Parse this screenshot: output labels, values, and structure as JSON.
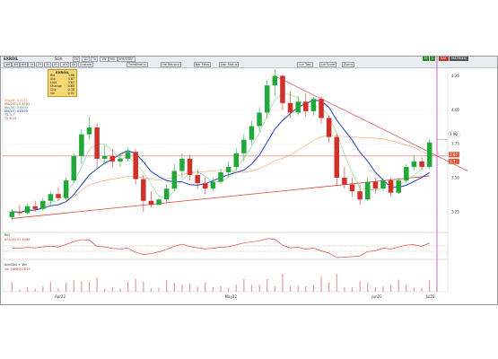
{
  "window": {
    "symbol": "EXROIL",
    "source_label": "SGX",
    "menu_items": [
      "Fe",
      "1D",
      "Tk",
      "1W",
      "M/L",
      "IFR/OTRF"
    ],
    "period_buttons": [
      "1M",
      "3M",
      "6M",
      "1Y",
      "2Y",
      "3Y",
      "5Y",
      "10Y",
      "All",
      "Custom"
    ],
    "toolbar_buttons": [
      "Trendline(s)",
      "Fib Retrace",
      "Bar Mkrs",
      "Dsp Status"
    ],
    "draw_buttons": [
      "Cur Tool",
      "Lin Scale",
      "Zoom"
    ],
    "badges": [
      {
        "text": "H",
        "color": "#2f8a2f"
      },
      {
        "text": "L",
        "color": "#2f8a2f"
      },
      {
        "text": "SAT",
        "color": "#c0392b"
      },
      {
        "text": "MATRIXIS",
        "color": "#555555"
      }
    ]
  },
  "quote": {
    "title": "EXROIL",
    "rows": [
      {
        "label": "Bid",
        "value": "3.66"
      },
      {
        "label": "Ask",
        "value": "3.67"
      },
      {
        "label": "Last",
        "value": "3.67"
      },
      {
        "label": "Change",
        "value": "0.65"
      },
      {
        "label": "Chg",
        "value": "0.38"
      },
      {
        "label": "Vol",
        "value": "0.01"
      }
    ]
  },
  "indicators": {
    "main": [
      {
        "text": "MA(20)",
        "value": "0.3111",
        "color": "#e07b2a"
      },
      {
        "text": "MA(200)",
        "value": "0.3181",
        "color": "#c0392b"
      },
      {
        "text": "MA(50)",
        "value": "0.6333",
        "color": "#2e8b57"
      },
      {
        "text": "MA(10)",
        "value": "0.6590",
        "color": "#1f3fbf"
      }
    ],
    "main_extra": [
      "T1.3.7",
      "T2.8.15"
    ],
    "rsi_label": "RSI",
    "rsi_value": "RSI(14)   57.6496",
    "vol_label": "Acc/Dist + Vol",
    "vol_value": "Vol   1668007819"
  },
  "price_tags": [
    {
      "text": "3.90",
      "color": "#ffffff",
      "text_color": "#333333"
    },
    {
      "text": "3.67",
      "color": "#e05a40",
      "text_color": "#ffffff"
    },
    {
      "text": "3.7",
      "color": "#e05a40",
      "text_color": "#ffffff"
    }
  ],
  "chart_data": {
    "type": "candlestick",
    "x_tick_labels": [
      "Apr22",
      "May22",
      "Jun22",
      "Jul22"
    ],
    "y_ticks": [
      3.25,
      3.5,
      3.75,
      4,
      4.25
    ],
    "ylim": [
      3.15,
      4.3
    ],
    "candles": [
      {
        "o": 3.21,
        "h": 3.27,
        "l": 3.19,
        "c": 3.25
      },
      {
        "o": 3.25,
        "h": 3.3,
        "l": 3.22,
        "c": 3.24
      },
      {
        "o": 3.24,
        "h": 3.31,
        "l": 3.23,
        "c": 3.29
      },
      {
        "o": 3.29,
        "h": 3.33,
        "l": 3.25,
        "c": 3.27
      },
      {
        "o": 3.27,
        "h": 3.35,
        "l": 3.26,
        "c": 3.33
      },
      {
        "o": 3.33,
        "h": 3.4,
        "l": 3.3,
        "c": 3.38
      },
      {
        "o": 3.38,
        "h": 3.43,
        "l": 3.33,
        "c": 3.35
      },
      {
        "o": 3.35,
        "h": 3.5,
        "l": 3.34,
        "c": 3.48
      },
      {
        "o": 3.48,
        "h": 3.68,
        "l": 3.46,
        "c": 3.66
      },
      {
        "o": 3.66,
        "h": 3.86,
        "l": 3.6,
        "c": 3.82
      },
      {
        "o": 3.82,
        "h": 3.95,
        "l": 3.78,
        "c": 3.87
      },
      {
        "o": 3.87,
        "h": 3.9,
        "l": 3.58,
        "c": 3.64
      },
      {
        "o": 3.64,
        "h": 3.74,
        "l": 3.6,
        "c": 3.66
      },
      {
        "o": 3.66,
        "h": 3.71,
        "l": 3.58,
        "c": 3.62
      },
      {
        "o": 3.62,
        "h": 3.68,
        "l": 3.58,
        "c": 3.64
      },
      {
        "o": 3.64,
        "h": 3.72,
        "l": 3.62,
        "c": 3.69
      },
      {
        "o": 3.69,
        "h": 3.71,
        "l": 3.45,
        "c": 3.49
      },
      {
        "o": 3.49,
        "h": 3.52,
        "l": 3.25,
        "c": 3.33
      },
      {
        "o": 3.33,
        "h": 3.4,
        "l": 3.28,
        "c": 3.3
      },
      {
        "o": 3.3,
        "h": 3.35,
        "l": 3.3,
        "c": 3.34
      },
      {
        "o": 3.34,
        "h": 3.45,
        "l": 3.32,
        "c": 3.42
      },
      {
        "o": 3.42,
        "h": 3.6,
        "l": 3.4,
        "c": 3.55
      },
      {
        "o": 3.55,
        "h": 3.68,
        "l": 3.5,
        "c": 3.64
      },
      {
        "o": 3.64,
        "h": 3.67,
        "l": 3.48,
        "c": 3.52
      },
      {
        "o": 3.52,
        "h": 3.56,
        "l": 3.42,
        "c": 3.46
      },
      {
        "o": 3.46,
        "h": 3.5,
        "l": 3.38,
        "c": 3.42
      },
      {
        "o": 3.42,
        "h": 3.5,
        "l": 3.4,
        "c": 3.47
      },
      {
        "o": 3.47,
        "h": 3.57,
        "l": 3.45,
        "c": 3.54
      },
      {
        "o": 3.54,
        "h": 3.62,
        "l": 3.5,
        "c": 3.58
      },
      {
        "o": 3.58,
        "h": 3.72,
        "l": 3.55,
        "c": 3.68
      },
      {
        "o": 3.68,
        "h": 3.82,
        "l": 3.62,
        "c": 3.78
      },
      {
        "o": 3.78,
        "h": 3.92,
        "l": 3.74,
        "c": 3.88
      },
      {
        "o": 3.88,
        "h": 4.02,
        "l": 3.84,
        "c": 3.98
      },
      {
        "o": 3.98,
        "h": 4.22,
        "l": 3.94,
        "c": 4.18
      },
      {
        "o": 4.18,
        "h": 4.3,
        "l": 4.1,
        "c": 4.25
      },
      {
        "o": 4.25,
        "h": 4.26,
        "l": 4.0,
        "c": 4.05
      },
      {
        "o": 4.05,
        "h": 4.14,
        "l": 3.94,
        "c": 3.98
      },
      {
        "o": 3.98,
        "h": 4.1,
        "l": 3.96,
        "c": 4.06
      },
      {
        "o": 4.06,
        "h": 4.12,
        "l": 3.95,
        "c": 3.99
      },
      {
        "o": 3.99,
        "h": 4.1,
        "l": 3.96,
        "c": 4.08
      },
      {
        "o": 4.08,
        "h": 4.1,
        "l": 3.9,
        "c": 3.94
      },
      {
        "o": 3.94,
        "h": 3.96,
        "l": 3.76,
        "c": 3.8
      },
      {
        "o": 3.8,
        "h": 3.82,
        "l": 3.44,
        "c": 3.5
      },
      {
        "o": 3.5,
        "h": 3.58,
        "l": 3.42,
        "c": 3.45
      },
      {
        "o": 3.45,
        "h": 3.5,
        "l": 3.36,
        "c": 3.4
      },
      {
        "o": 3.4,
        "h": 3.45,
        "l": 3.3,
        "c": 3.34
      },
      {
        "o": 3.34,
        "h": 3.5,
        "l": 3.33,
        "c": 3.47
      },
      {
        "o": 3.47,
        "h": 3.5,
        "l": 3.38,
        "c": 3.42
      },
      {
        "o": 3.42,
        "h": 3.5,
        "l": 3.4,
        "c": 3.48
      },
      {
        "o": 3.48,
        "h": 3.5,
        "l": 3.36,
        "c": 3.39
      },
      {
        "o": 3.39,
        "h": 3.5,
        "l": 3.38,
        "c": 3.48
      },
      {
        "o": 3.48,
        "h": 3.6,
        "l": 3.46,
        "c": 3.58
      },
      {
        "o": 3.58,
        "h": 3.66,
        "l": 3.55,
        "c": 3.62
      },
      {
        "o": 3.62,
        "h": 3.65,
        "l": 3.55,
        "c": 3.58
      },
      {
        "o": 3.58,
        "h": 3.78,
        "l": 3.57,
        "c": 3.76
      }
    ]
  }
}
